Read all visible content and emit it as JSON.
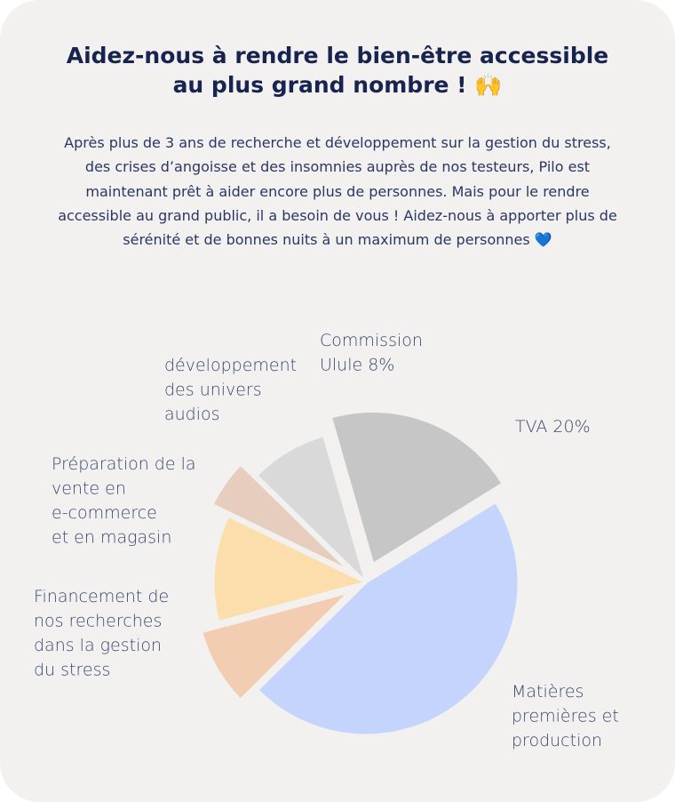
{
  "header": {
    "title": "Aidez-nous à rendre le bien-être accessible au plus grand nombre ! 🙌",
    "intro": "Après plus de 3 ans de recherche et développement sur la gestion du stress, des crises d’angoisse et des insomnies auprès de nos testeurs, Pilo est maintenant prêt à aider encore plus de personnes. Mais pour le rendre accessible au grand public, il a besoin de vous ! Aidez-nous à apporter plus de sérénité et de bonnes nuits à un maximum de personnes 💙"
  },
  "chart_data": {
    "type": "pie",
    "title": "",
    "slices": [
      {
        "label": "TVA 20%",
        "label_lines": [
          "TVA 20%"
        ],
        "value": 20,
        "color": "#c6c6c6",
        "exploded": true
      },
      {
        "label": "Matières premières et production",
        "label_lines": [
          "Matières",
          "premières et",
          "production"
        ],
        "value": 45,
        "color": "#c5d4fc",
        "exploded": false
      },
      {
        "label": "Financement de nos recherches dans la gestion du stress",
        "label_lines": [
          "Financement de",
          "nos recherches",
          "dans la gestion",
          "du stress"
        ],
        "value": 8,
        "color": "#f3cdb1",
        "exploded": true
      },
      {
        "label": "Préparation de la vente en e-commerce et en magasin",
        "label_lines": [
          "Préparation de la",
          "vente en",
          "e-commerce",
          "et en magasin"
        ],
        "value": 11,
        "color": "#fcdeac",
        "exploded": false
      },
      {
        "label": "développement des univers audios",
        "label_lines": [
          "développement",
          "des univers",
          "audios"
        ],
        "value": 5,
        "color": "#e6cdbd",
        "exploded": true
      },
      {
        "label": "Commission Ulule 8%",
        "label_lines": [
          "Commission",
          "Ulule 8%"
        ],
        "value": 8,
        "color": "#d9d9d9",
        "exploded": false
      }
    ]
  }
}
